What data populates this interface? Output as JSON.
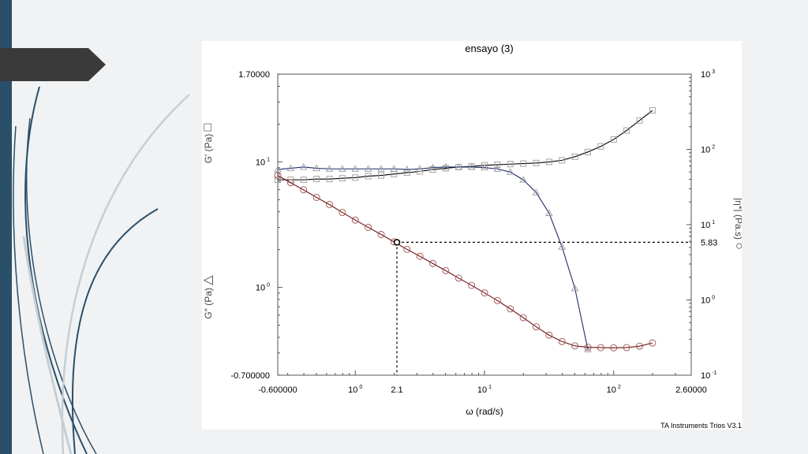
{
  "footer": {
    "credit": "TA Instruments Trios V3.1"
  },
  "colors": {
    "sidebar": "#2a4f69",
    "tab": "#3a3a3a",
    "series_gprime": "#000000",
    "series_gdoubleprime": "#1f2d6b",
    "series_eta": "#6b1010",
    "marker": "#9a9a9a",
    "marker_eta": "#a05050"
  },
  "chart_data": {
    "type": "line",
    "title": "ensayo (3)",
    "xlabel": "ω  (rad/s)",
    "x_scale": "log",
    "xlim": [
      0.251189,
      398.107
    ],
    "x_ticks": [
      {
        "value": 0.251189,
        "base": "-0.600000",
        "exp": ""
      },
      {
        "value": 1,
        "base": "10",
        "exp": "0"
      },
      {
        "value": 2.1,
        "base": "2.1",
        "exp": ""
      },
      {
        "value": 10,
        "base": "10",
        "exp": "1"
      },
      {
        "value": 100,
        "base": "10",
        "exp": "2"
      },
      {
        "value": 398.107,
        "base": "2.60000",
        "exp": ""
      }
    ],
    "y_left": {
      "scale": "log",
      "lim": [
        0.199526,
        50.1187
      ],
      "ticks": [
        {
          "value": 50.1187,
          "base": "1.70000",
          "exp": ""
        },
        {
          "value": 10,
          "base": "10",
          "exp": "1"
        },
        {
          "value": 1,
          "base": "10",
          "exp": "0"
        },
        {
          "value": 0.199526,
          "base": "-0.700000",
          "exp": ""
        }
      ],
      "label_upper": "G′  (Pa)",
      "label_lower": "G″  (Pa)",
      "symbol_upper": "□",
      "symbol_lower": "△"
    },
    "y_right": {
      "scale": "log",
      "lim": [
        0.1,
        1000
      ],
      "ticks": [
        {
          "value": 1000,
          "base": "10",
          "exp": "3"
        },
        {
          "value": 100,
          "base": "10",
          "exp": "2"
        },
        {
          "value": 10,
          "base": "10",
          "exp": "1"
        },
        {
          "value": 5.83,
          "base": "5.83",
          "exp": ""
        },
        {
          "value": 1,
          "base": "10",
          "exp": "0"
        },
        {
          "value": 0.1,
          "base": "10",
          "exp": "-1"
        }
      ],
      "label": "|η*|  (Pa.s)",
      "symbol": "○"
    },
    "annotation": {
      "x": 2.1,
      "y_right": 5.83
    },
    "series": [
      {
        "axis": "left",
        "marker": "square",
        "x": [
          0.2512,
          0.3162,
          0.3981,
          0.5012,
          0.631,
          0.7943,
          1,
          1.259,
          1.585,
          1.995,
          2.512,
          3.162,
          3.981,
          5.012,
          6.31,
          7.943,
          10,
          12.59,
          15.85,
          19.95,
          25.12,
          31.62,
          39.81,
          50.12,
          63.1,
          79.43,
          100,
          125.9,
          158.5,
          199.5
        ],
        "values": [
          7.2,
          7.2,
          7.2,
          7.3,
          7.3,
          7.4,
          7.5,
          7.7,
          7.8,
          8.0,
          8.2,
          8.4,
          8.7,
          8.9,
          9.1,
          9.2,
          9.4,
          9.5,
          9.6,
          9.7,
          9.8,
          10.0,
          10.3,
          11.0,
          12.0,
          13.3,
          15.1,
          17.8,
          21.4,
          25.7
        ]
      },
      {
        "axis": "left",
        "marker": "triangle",
        "x": [
          0.2512,
          0.3162,
          0.3981,
          0.5012,
          0.631,
          0.7943,
          1,
          1.259,
          1.585,
          1.995,
          2.512,
          3.162,
          3.981,
          5.012,
          6.31,
          7.943,
          10,
          12.59,
          15.85,
          19.95,
          25.12,
          31.62,
          39.81,
          50.12,
          63.1
        ],
        "values": [
          8.7,
          8.9,
          9.1,
          8.9,
          8.8,
          8.8,
          8.8,
          8.8,
          8.8,
          8.8,
          8.7,
          8.8,
          9.0,
          9.1,
          9.1,
          9.1,
          9.0,
          8.8,
          8.3,
          7.2,
          5.7,
          3.9,
          2.1,
          0.98,
          0.32
        ]
      },
      {
        "axis": "right",
        "marker": "circle",
        "x": [
          0.2512,
          0.3162,
          0.3981,
          0.5012,
          0.631,
          0.7943,
          1,
          1.259,
          1.585,
          1.995,
          2.512,
          3.162,
          3.981,
          5.012,
          6.31,
          7.943,
          10,
          12.59,
          15.85,
          19.95,
          25.12,
          31.62,
          39.81,
          50.12,
          63.1,
          79.43,
          100,
          125.9,
          158.5,
          199.5
        ],
        "values": [
          45,
          36,
          29,
          23,
          18.5,
          14.5,
          11.5,
          9.2,
          7.4,
          5.9,
          4.7,
          3.8,
          3.05,
          2.45,
          1.95,
          1.56,
          1.24,
          0.98,
          0.76,
          0.58,
          0.44,
          0.34,
          0.28,
          0.245,
          0.235,
          0.232,
          0.231,
          0.233,
          0.243,
          0.268
        ]
      }
    ]
  }
}
